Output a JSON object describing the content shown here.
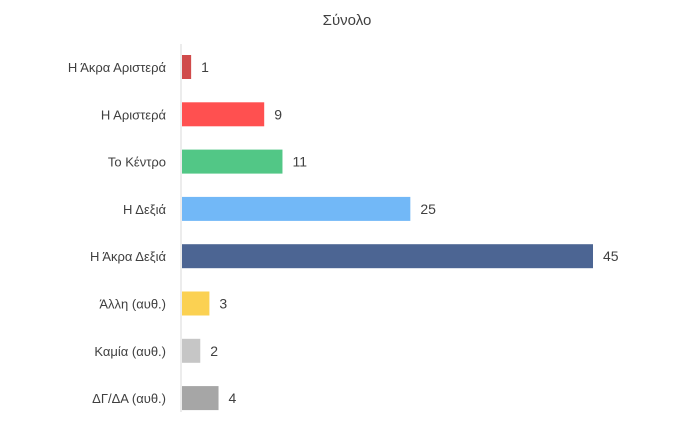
{
  "chart_data": {
    "type": "bar",
    "orientation": "horizontal",
    "title": "Σύνολο",
    "categories": [
      "Η Άκρα Αριστερά",
      "Η Αριστερά",
      "Το Κέντρο",
      "Η Δεξιά",
      "Η Άκρα Δεξιά",
      "Άλλη (αυθ.)",
      "Καμία (αυθ.)",
      "ΔΓ/ΔΑ (αυθ.)"
    ],
    "values": [
      1,
      9,
      11,
      25,
      45,
      3,
      2,
      4
    ],
    "colors": [
      "#d04b4b",
      "#ff5050",
      "#52c786",
      "#72b8f7",
      "#4c6593",
      "#fbd152",
      "#c6c6c6",
      "#a6a6a6"
    ],
    "data_labels": true,
    "grid": false,
    "legend": "none"
  }
}
